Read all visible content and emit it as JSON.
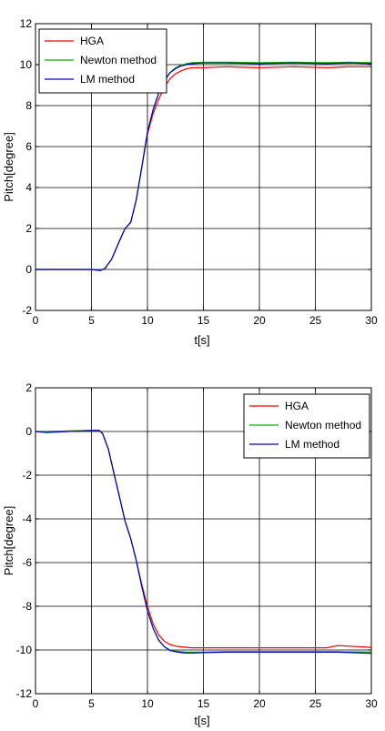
{
  "chart_data": [
    {
      "type": "line",
      "title": "",
      "xlabel": "t[s]",
      "ylabel": "Pitch[degree]",
      "xlim": [
        0,
        30
      ],
      "ylim": [
        -2,
        12
      ],
      "xticks": [
        "0",
        "5",
        "10",
        "15",
        "20",
        "25",
        "30"
      ],
      "yticks": [
        "-2",
        "0",
        "2",
        "4",
        "6",
        "8",
        "10",
        "12"
      ],
      "grid": true,
      "legend_position": "top-left",
      "series": [
        {
          "name": "HGA",
          "color": "#ff0000",
          "x": [
            0,
            5,
            5.8,
            6.2,
            6.8,
            7.5,
            8,
            8.5,
            9,
            9.5,
            10,
            10.5,
            11,
            11.5,
            12,
            12.5,
            13,
            13.5,
            14,
            15,
            17,
            20,
            23,
            26,
            28,
            30
          ],
          "y": [
            0,
            0,
            -0.05,
            0.05,
            0.5,
            1.4,
            2.0,
            2.3,
            3.4,
            5.0,
            6.6,
            7.6,
            8.3,
            8.9,
            9.3,
            9.55,
            9.7,
            9.8,
            9.85,
            9.85,
            9.9,
            9.85,
            9.9,
            9.85,
            9.9,
            9.9
          ]
        },
        {
          "name": "Newton method",
          "color": "#00b000",
          "x": [
            0,
            5,
            5.8,
            6.2,
            6.8,
            7.5,
            8,
            8.5,
            9,
            9.5,
            10,
            10.5,
            11,
            11.5,
            12,
            12.5,
            13,
            13.5,
            14,
            15,
            17,
            20,
            23,
            26,
            28,
            30
          ],
          "y": [
            0,
            0,
            -0.05,
            0.05,
            0.5,
            1.4,
            2.0,
            2.3,
            3.4,
            5.0,
            6.7,
            7.8,
            8.6,
            9.2,
            9.6,
            9.85,
            9.98,
            10.05,
            10.1,
            10.12,
            10.12,
            10.1,
            10.12,
            10.1,
            10.12,
            10.1
          ]
        },
        {
          "name": "LM method",
          "color": "#0000cc",
          "x": [
            0,
            5,
            5.8,
            6.2,
            6.8,
            7.5,
            8,
            8.5,
            9,
            9.5,
            10,
            10.5,
            11,
            11.5,
            12,
            12.5,
            13,
            13.5,
            14,
            15,
            17,
            20,
            23,
            26,
            28,
            30
          ],
          "y": [
            0,
            0,
            -0.05,
            0.05,
            0.5,
            1.4,
            2.0,
            2.3,
            3.4,
            5.0,
            6.7,
            7.8,
            8.6,
            9.2,
            9.6,
            9.8,
            9.93,
            10.0,
            10.05,
            10.08,
            10.08,
            10.05,
            10.08,
            10.05,
            10.08,
            10.05
          ]
        }
      ]
    },
    {
      "type": "line",
      "title": "",
      "xlabel": "t[s]",
      "ylabel": "Pitch[degree]",
      "xlim": [
        0,
        30
      ],
      "ylim": [
        -12,
        2
      ],
      "xticks": [
        "0",
        "5",
        "10",
        "15",
        "20",
        "25",
        "30"
      ],
      "yticks": [
        "-12",
        "-10",
        "-8",
        "-6",
        "-4",
        "-2",
        "0",
        "2"
      ],
      "grid": true,
      "legend_position": "top-right",
      "series": [
        {
          "name": "HGA",
          "color": "#ff0000",
          "x": [
            0,
            1,
            5,
            5.7,
            6,
            6.5,
            7,
            7.5,
            8,
            8.5,
            9,
            9.5,
            10,
            10.5,
            11,
            11.5,
            12,
            12.5,
            13,
            13.5,
            14,
            15,
            17,
            20,
            23,
            26,
            27,
            30
          ],
          "y": [
            0,
            0,
            0.05,
            0.05,
            -0.1,
            -0.8,
            -1.9,
            -3.0,
            -4.1,
            -4.9,
            -5.9,
            -7.0,
            -8.0,
            -8.8,
            -9.3,
            -9.6,
            -9.75,
            -9.82,
            -9.86,
            -9.88,
            -9.9,
            -9.9,
            -9.9,
            -9.9,
            -9.9,
            -9.9,
            -9.8,
            -9.88
          ]
        },
        {
          "name": "Newton method",
          "color": "#00b000",
          "x": [
            0,
            1,
            5,
            5.7,
            6,
            6.5,
            7,
            7.5,
            8,
            8.5,
            9,
            9.5,
            10,
            10.5,
            11,
            11.5,
            12,
            12.5,
            13,
            13.5,
            14,
            15,
            17,
            20,
            23,
            26,
            27,
            30
          ],
          "y": [
            0,
            0,
            0.05,
            0.05,
            -0.1,
            -0.8,
            -1.9,
            -3.0,
            -4.1,
            -4.9,
            -5.9,
            -7.1,
            -8.2,
            -9.0,
            -9.55,
            -9.85,
            -10.0,
            -10.05,
            -10.08,
            -10.1,
            -10.1,
            -10.1,
            -10.08,
            -10.08,
            -10.08,
            -10.08,
            -10.08,
            -10.1
          ]
        },
        {
          "name": "LM method",
          "color": "#0000cc",
          "x": [
            0,
            1,
            5,
            5.7,
            6,
            6.5,
            7,
            7.5,
            8,
            8.5,
            9,
            9.5,
            10,
            10.5,
            11,
            11.5,
            12,
            12.5,
            13,
            13.5,
            14,
            15,
            17,
            20,
            23,
            26,
            27,
            30
          ],
          "y": [
            0,
            -0.05,
            0.05,
            0.05,
            -0.1,
            -0.8,
            -1.9,
            -3.0,
            -4.1,
            -4.9,
            -5.9,
            -7.1,
            -8.2,
            -9.0,
            -9.55,
            -9.85,
            -10.02,
            -10.08,
            -10.12,
            -10.14,
            -10.14,
            -10.12,
            -10.1,
            -10.1,
            -10.1,
            -10.1,
            -10.1,
            -10.15
          ]
        }
      ]
    }
  ]
}
